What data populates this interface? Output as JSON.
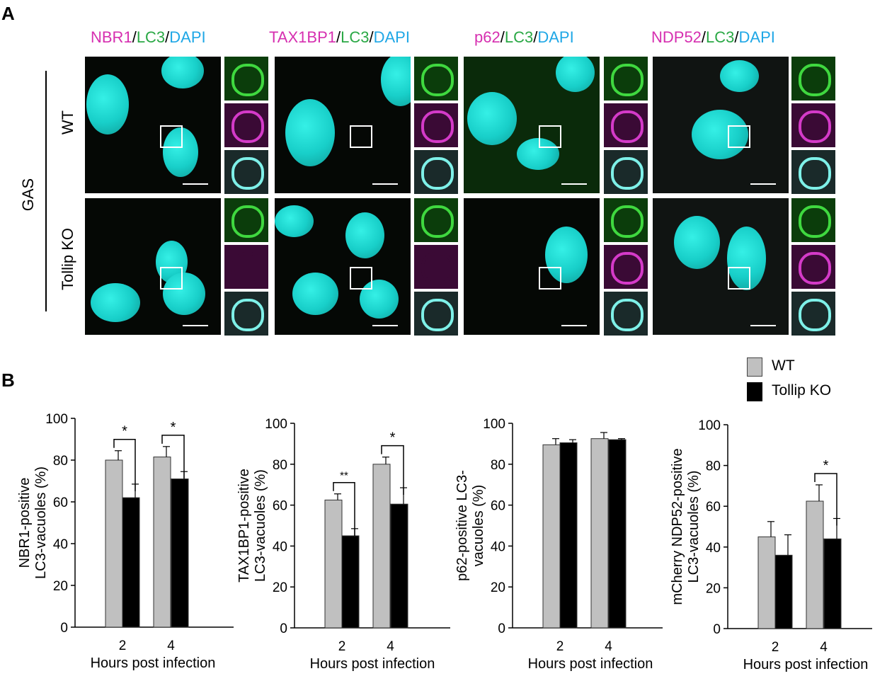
{
  "panel_a": {
    "label": "A",
    "columns": [
      {
        "marker": "NBR1",
        "sep1": "/",
        "lc3": "LC3",
        "sep2": "/",
        "dapi": "DAPI"
      },
      {
        "marker": "TAX1BP1",
        "sep1": "/",
        "lc3": "LC3",
        "sep2": "/",
        "dapi": "DAPI"
      },
      {
        "marker": "p62",
        "sep1": "/",
        "lc3": "LC3",
        "sep2": "/",
        "dapi": "DAPI"
      },
      {
        "marker": "NDP52",
        "sep1": "/",
        "lc3": "LC3",
        "sep2": "/",
        "dapi": "DAPI"
      }
    ],
    "group_label": "GAS",
    "rows": [
      "WT",
      "Tollip KO"
    ]
  },
  "panel_b": {
    "label": "B",
    "legend": [
      {
        "name": "WT",
        "color": "#c0c0c0"
      },
      {
        "name": "Tollip KO",
        "color": "#000000"
      }
    ]
  },
  "chart_data": [
    {
      "type": "bar",
      "categories": [
        "2",
        "4"
      ],
      "series": [
        {
          "name": "WT",
          "values": [
            80,
            81.5
          ],
          "errors": [
            4.5,
            5
          ]
        },
        {
          "name": "Tollip KO",
          "values": [
            62,
            71
          ],
          "errors": [
            6.5,
            3.5
          ]
        }
      ],
      "significance": [
        "*",
        "*"
      ],
      "xlabel": "Hours post infection",
      "ylabel_lines": [
        "NBR1-positive",
        "LC3-vacuoles (%)"
      ],
      "ylim": [
        0,
        100
      ],
      "yticks": [
        0,
        20,
        40,
        60,
        80,
        100
      ]
    },
    {
      "type": "bar",
      "categories": [
        "2",
        "4"
      ],
      "series": [
        {
          "name": "WT",
          "values": [
            62.5,
            80
          ],
          "errors": [
            3,
            3.5
          ]
        },
        {
          "name": "Tollip KO",
          "values": [
            45,
            60.5
          ],
          "errors": [
            3.5,
            8
          ]
        }
      ],
      "significance": [
        "**",
        "*"
      ],
      "xlabel": "Hours post infection",
      "ylabel_lines": [
        "TAX1BP1-positive",
        "LC3-vacuoles (%)"
      ],
      "ylim": [
        0,
        100
      ],
      "yticks": [
        0,
        20,
        40,
        60,
        80,
        100
      ]
    },
    {
      "type": "bar",
      "categories": [
        "2",
        "4"
      ],
      "series": [
        {
          "name": "WT",
          "values": [
            89.5,
            92.5
          ],
          "errors": [
            3,
            3
          ]
        },
        {
          "name": "Tollip KO",
          "values": [
            90.5,
            92
          ],
          "errors": [
            1.5,
            0.5
          ]
        }
      ],
      "significance": [
        "",
        ""
      ],
      "xlabel": "Hours post infection",
      "ylabel_lines": [
        "p62-positive LC3-",
        "vacuoles (%)"
      ],
      "ylim": [
        0,
        100
      ],
      "yticks": [
        0,
        20,
        40,
        60,
        80,
        100
      ]
    },
    {
      "type": "bar",
      "categories": [
        "2",
        "4"
      ],
      "series": [
        {
          "name": "WT",
          "values": [
            45,
            62.5
          ],
          "errors": [
            7.5,
            8
          ]
        },
        {
          "name": "Tollip KO",
          "values": [
            36,
            44
          ],
          "errors": [
            10,
            10
          ]
        }
      ],
      "significance": [
        "",
        "*"
      ],
      "xlabel": "Hours post infection",
      "ylabel_lines": [
        "mCherry NDP52-positive",
        "LC3-vacuoles (%)"
      ],
      "ylim": [
        0,
        100
      ],
      "yticks": [
        0,
        20,
        40,
        60,
        80,
        100
      ]
    }
  ]
}
